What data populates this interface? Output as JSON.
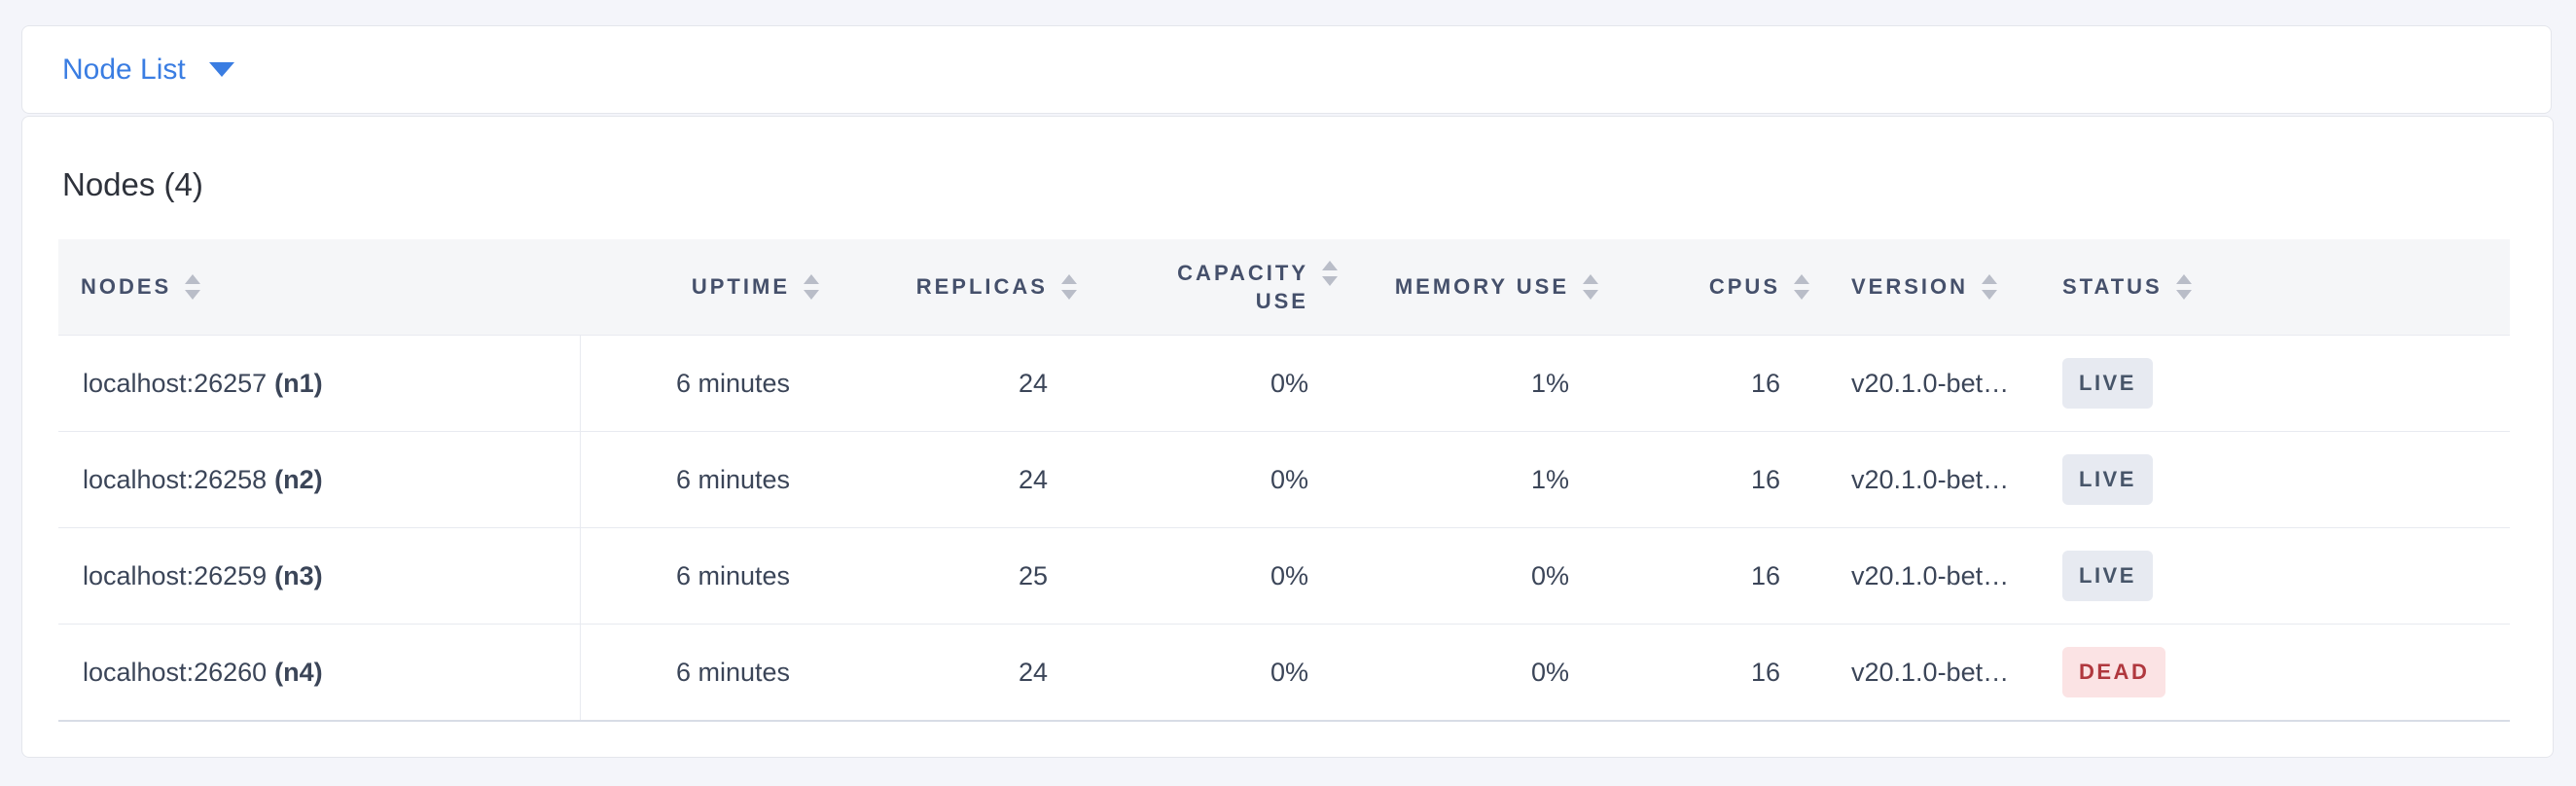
{
  "colors": {
    "page_background": "#f4f5fa",
    "accent_blue": "#3a7de2",
    "header_text": "#45506b",
    "cell_text": "#3b4558",
    "live_badge_bg": "#e7eaf1",
    "live_badge_text": "#475569",
    "dead_badge_bg": "#fbe3e4",
    "dead_badge_text": "#b0383e"
  },
  "topbar": {
    "view_dropdown_label": "Node List",
    "caret_icon": "caret-down-icon"
  },
  "main": {
    "title": "Nodes (4)",
    "node_count": "4"
  },
  "table": {
    "columns": [
      {
        "label": "NODES",
        "align": "left",
        "sortable": true
      },
      {
        "label": "UPTIME",
        "align": "right",
        "sortable": true
      },
      {
        "label": "REPLICAS",
        "align": "right",
        "sortable": true
      },
      {
        "label": "CAPACITY USE",
        "align": "right",
        "sortable": true
      },
      {
        "label": "MEMORY USE",
        "align": "right",
        "sortable": true
      },
      {
        "label": "CPUS",
        "align": "right",
        "sortable": true
      },
      {
        "label": "VERSION",
        "align": "left",
        "sortable": true
      },
      {
        "label": "STATUS",
        "align": "left",
        "sortable": true
      }
    ],
    "rows": [
      {
        "address": "localhost:26257",
        "node_id": "(n1)",
        "uptime": "6 minutes",
        "replicas": "24",
        "capacity_use": "0%",
        "memory_use": "1%",
        "cpus": "16",
        "version": "v20.1.0-bet…",
        "status": "LIVE"
      },
      {
        "address": "localhost:26258",
        "node_id": "(n2)",
        "uptime": "6 minutes",
        "replicas": "24",
        "capacity_use": "0%",
        "memory_use": "1%",
        "cpus": "16",
        "version": "v20.1.0-bet…",
        "status": "LIVE"
      },
      {
        "address": "localhost:26259",
        "node_id": "(n3)",
        "uptime": "6 minutes",
        "replicas": "25",
        "capacity_use": "0%",
        "memory_use": "0%",
        "cpus": "16",
        "version": "v20.1.0-bet…",
        "status": "LIVE"
      },
      {
        "address": "localhost:26260",
        "node_id": "(n4)",
        "uptime": "6 minutes",
        "replicas": "24",
        "capacity_use": "0%",
        "memory_use": "0%",
        "cpus": "16",
        "version": "v20.1.0-bet…",
        "status": "DEAD"
      }
    ]
  }
}
